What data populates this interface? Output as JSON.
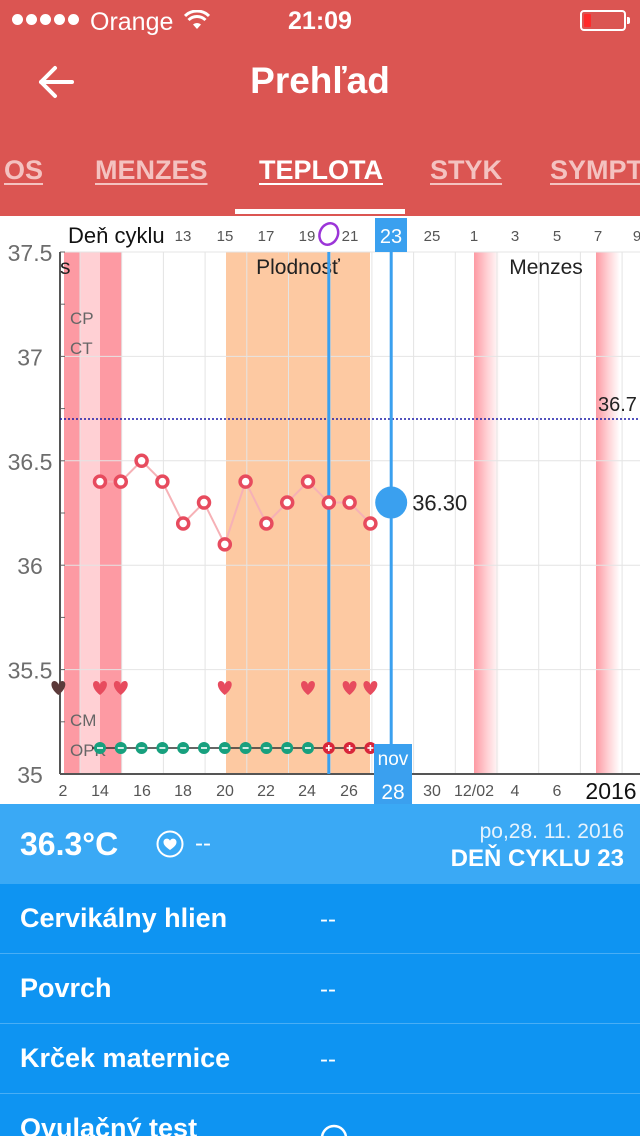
{
  "status_bar": {
    "carrier": "Orange",
    "time": "21:09",
    "battery_color": "#ff2a2a"
  },
  "header": {
    "back_icon": "arrow-left-icon",
    "title": "Prehľad"
  },
  "tabs": [
    {
      "label": "OS",
      "active": false
    },
    {
      "label": "MENZES",
      "active": false
    },
    {
      "label": "TEPLOTA",
      "active": true
    },
    {
      "label": "STYK",
      "active": false
    },
    {
      "label": "SYMPT",
      "active": false
    }
  ],
  "chart_data": {
    "type": "line",
    "title": "",
    "top_axis_label": "Deň cyklu",
    "cycle_day_ticks": [
      "13",
      "15",
      "17",
      "19",
      "21",
      "23",
      "25",
      "1",
      "3",
      "5",
      "7",
      "9"
    ],
    "selected_cycle_day": "23",
    "date_ticks": [
      "2",
      "14",
      "16",
      "18",
      "20",
      "22",
      "24",
      "26",
      "28",
      "30",
      "12/02",
      "4",
      "6"
    ],
    "selected_date": "28",
    "selected_month": "nov",
    "year_label": "2016",
    "yaxis_ticks": [
      "37.5",
      "37",
      "36.5",
      "36",
      "35.5",
      "35"
    ],
    "ylim": [
      35,
      37.5
    ],
    "region_labels": {
      "left_cut": "s",
      "fertile": "Plodnosť",
      "menses": "Menzes"
    },
    "row_labels": [
      "CP",
      "CT",
      "CM",
      "OPK"
    ],
    "coverline": 36.7,
    "coverline_label": "36.7",
    "series": [
      {
        "dates": [
          14,
          15,
          16,
          17,
          18,
          19,
          20,
          21,
          22,
          23,
          24,
          25,
          26,
          27
        ],
        "values": [
          36.4,
          36.4,
          36.5,
          36.4,
          36.2,
          36.3,
          36.1,
          36.4,
          36.2,
          36.3,
          36.4,
          36.3,
          36.3,
          36.2
        ]
      }
    ],
    "selected_value": 36.3,
    "selected_value_label": "36.30",
    "intercourse_days": [
      12,
      14,
      15,
      20,
      24,
      26,
      27
    ],
    "opk_negative_days": [
      14,
      15,
      16,
      17,
      18,
      19,
      20,
      21,
      22,
      23,
      24
    ],
    "opk_positive_days": [
      25,
      26,
      27
    ],
    "ovulation_day": 25,
    "colors": {
      "menses": "#fd9aa3",
      "menses_light": "#ffd0d4",
      "fertile": "#fdc9a2",
      "temp_point": "#e74b5e",
      "temp_line": "#f6b1b6",
      "selection": "#3aa0ef",
      "coverline": "#1a1aa8",
      "ovulation": "#9b35d8",
      "opk_negative": "#17a07e",
      "opk_positive": "#d8253a"
    }
  },
  "summary": {
    "temperature": "36.3°C",
    "mood_icon": "heart-badge-icon",
    "mood_value": "--",
    "date": "po,28. 11. 2016",
    "cycle_day": "DEŇ CYKLU 23"
  },
  "details": [
    {
      "label": "Cervikálny hlien",
      "value": "--"
    },
    {
      "label": "Povrch",
      "value": "--"
    },
    {
      "label": "Krček maternice",
      "value": "--"
    },
    {
      "label": "Ovulačný test",
      "value_icon": "minus-circle-icon"
    }
  ]
}
